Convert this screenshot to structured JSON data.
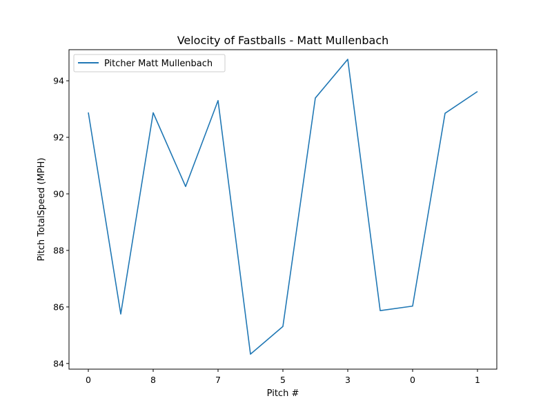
{
  "chart_data": {
    "type": "line",
    "title": "Velocity of Fastballs - Matt Mullenbach",
    "xlabel": "Pitch #",
    "ylabel": "Pitch TotalSpeed (MPH)",
    "ylim": [
      83.8,
      95.1
    ],
    "y_ticks": [
      84,
      86,
      88,
      90,
      92,
      94
    ],
    "x_tick_labels": [
      "0",
      "8",
      "7",
      "5",
      "3",
      "0",
      "1"
    ],
    "legend_position": "top-left",
    "grid": false,
    "series": [
      {
        "name": "Pitcher Matt Mullenbach",
        "color": "#1f77b4",
        "values": [
          92.88,
          85.75,
          92.87,
          90.26,
          93.3,
          84.33,
          85.31,
          93.39,
          94.76,
          85.87,
          86.03,
          92.85,
          93.62
        ]
      }
    ]
  }
}
